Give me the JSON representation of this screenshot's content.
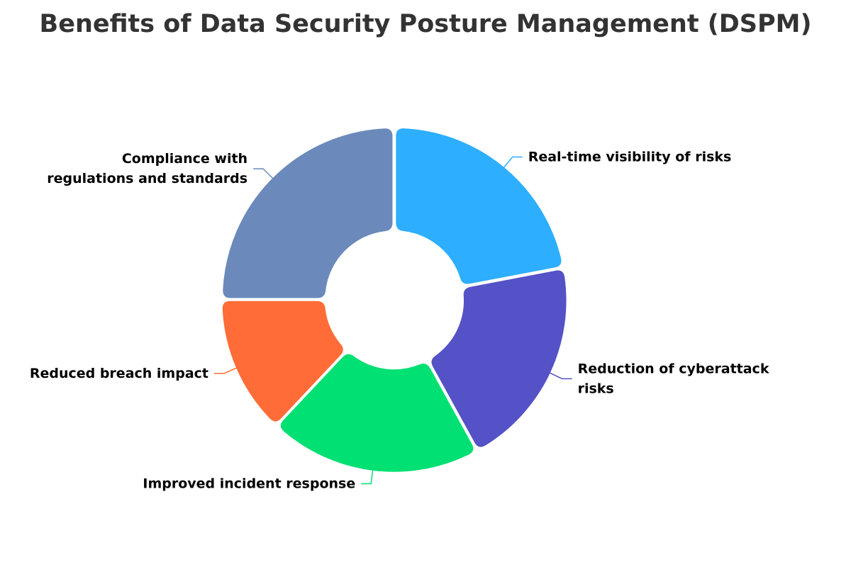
{
  "chart_data": {
    "type": "pie",
    "variant": "donut",
    "title": "Benefits of Data Security Posture Management (DSPM)",
    "categories": [
      "Real-time visibility of risks",
      "Reduction of cyberattack risks",
      "Improved incident response",
      "Reduced breach impact",
      "Compliance with regulations and standards"
    ],
    "values": [
      22,
      20,
      20,
      13,
      25
    ],
    "colors": [
      "#2eaefe",
      "#5452c6",
      "#00e073",
      "#ff6c37",
      "#6b8abb"
    ],
    "legend": "none",
    "data_labels": "outside-with-leader-lines"
  }
}
